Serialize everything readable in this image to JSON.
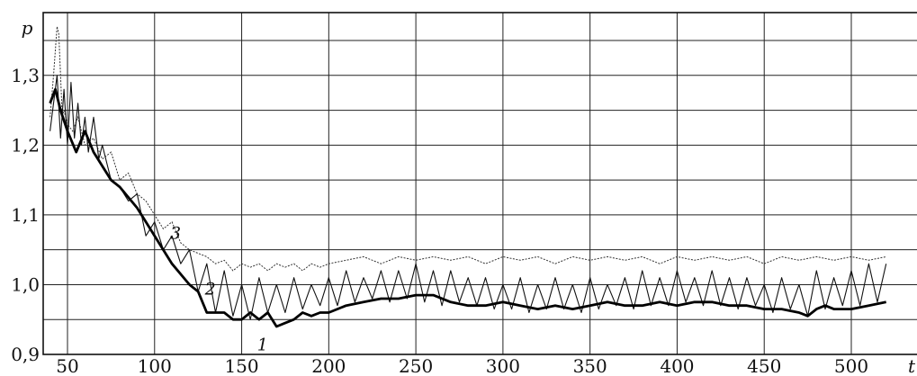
{
  "chart_data": {
    "type": "line",
    "xlabel": "t",
    "ylabel": "p",
    "xlim": [
      40,
      520
    ],
    "ylim": [
      0.9,
      1.39
    ],
    "x_ticks": [
      50,
      100,
      150,
      200,
      250,
      300,
      350,
      400,
      450,
      500
    ],
    "x_tick_labels": [
      "50",
      "100",
      "150",
      "200",
      "250",
      "300",
      "350",
      "400",
      "450",
      "500"
    ],
    "y_ticks": [
      0.9,
      1.0,
      1.1,
      1.2,
      1.3
    ],
    "y_tick_labels": [
      "0,9",
      "1,0",
      "1,1",
      "1,2",
      "1,3"
    ],
    "grid": true,
    "series": [
      {
        "name": "1",
        "style": "thick",
        "x": [
          40,
          43,
          46,
          50,
          55,
          60,
          65,
          70,
          75,
          80,
          90,
          100,
          110,
          120,
          125,
          130,
          135,
          140,
          145,
          150,
          155,
          160,
          165,
          170,
          175,
          180,
          185,
          190,
          195,
          200,
          210,
          220,
          230,
          240,
          250,
          260,
          270,
          280,
          290,
          300,
          310,
          320,
          330,
          340,
          350,
          360,
          370,
          380,
          390,
          400,
          410,
          420,
          430,
          440,
          450,
          460,
          470,
          475,
          480,
          485,
          490,
          500,
          510,
          520
        ],
        "y": [
          1.26,
          1.28,
          1.25,
          1.22,
          1.19,
          1.22,
          1.19,
          1.17,
          1.15,
          1.14,
          1.11,
          1.07,
          1.03,
          1.0,
          0.99,
          0.96,
          0.96,
          0.96,
          0.95,
          0.95,
          0.96,
          0.95,
          0.96,
          0.94,
          0.945,
          0.95,
          0.96,
          0.955,
          0.96,
          0.96,
          0.97,
          0.975,
          0.98,
          0.98,
          0.985,
          0.985,
          0.975,
          0.97,
          0.97,
          0.975,
          0.97,
          0.965,
          0.97,
          0.965,
          0.97,
          0.975,
          0.97,
          0.97,
          0.975,
          0.97,
          0.975,
          0.975,
          0.97,
          0.97,
          0.965,
          0.965,
          0.96,
          0.955,
          0.965,
          0.97,
          0.965,
          0.965,
          0.97,
          0.975
        ]
      },
      {
        "name": "2",
        "style": "thin",
        "x": [
          40,
          42,
          44,
          46,
          48,
          50,
          52,
          54,
          56,
          58,
          60,
          62,
          65,
          68,
          70,
          75,
          80,
          85,
          90,
          95,
          100,
          105,
          110,
          115,
          120,
          125,
          130,
          135,
          140,
          145,
          150,
          155,
          160,
          165,
          170,
          175,
          180,
          185,
          190,
          195,
          200,
          205,
          210,
          215,
          220,
          225,
          230,
          235,
          240,
          245,
          250,
          255,
          260,
          265,
          270,
          275,
          280,
          285,
          290,
          295,
          300,
          305,
          310,
          315,
          320,
          325,
          330,
          335,
          340,
          345,
          350,
          355,
          360,
          365,
          370,
          375,
          380,
          385,
          390,
          395,
          400,
          405,
          410,
          415,
          420,
          425,
          430,
          435,
          440,
          445,
          450,
          455,
          460,
          465,
          470,
          475,
          480,
          485,
          490,
          495,
          500,
          505,
          510,
          515,
          520
        ],
        "y": [
          1.22,
          1.26,
          1.3,
          1.21,
          1.28,
          1.2,
          1.29,
          1.21,
          1.26,
          1.2,
          1.24,
          1.19,
          1.24,
          1.18,
          1.2,
          1.15,
          1.14,
          1.12,
          1.13,
          1.07,
          1.09,
          1.05,
          1.07,
          1.03,
          1.05,
          0.99,
          1.03,
          0.96,
          1.02,
          0.955,
          1.0,
          0.95,
          1.01,
          0.96,
          1.0,
          0.96,
          1.01,
          0.965,
          1.0,
          0.97,
          1.01,
          0.97,
          1.02,
          0.975,
          1.01,
          0.98,
          1.02,
          0.975,
          1.02,
          0.98,
          1.03,
          0.975,
          1.02,
          0.97,
          1.02,
          0.975,
          1.01,
          0.97,
          1.01,
          0.965,
          1.0,
          0.965,
          1.01,
          0.96,
          1.0,
          0.965,
          1.01,
          0.965,
          1.0,
          0.96,
          1.01,
          0.965,
          1.0,
          0.97,
          1.01,
          0.965,
          1.02,
          0.97,
          1.01,
          0.97,
          1.02,
          0.975,
          1.01,
          0.97,
          1.02,
          0.97,
          1.01,
          0.965,
          1.01,
          0.97,
          1.0,
          0.96,
          1.01,
          0.965,
          1.0,
          0.955,
          1.02,
          0.965,
          1.01,
          0.97,
          1.02,
          0.97,
          1.03,
          0.975,
          1.03
        ]
      },
      {
        "name": "3",
        "style": "dotted",
        "x": [
          40,
          42,
          44,
          45,
          46,
          47,
          48,
          50,
          53,
          56,
          60,
          65,
          70,
          75,
          80,
          85,
          90,
          95,
          100,
          105,
          110,
          115,
          120,
          125,
          130,
          135,
          140,
          145,
          150,
          155,
          160,
          165,
          170,
          175,
          180,
          185,
          190,
          195,
          200,
          210,
          220,
          230,
          240,
          250,
          260,
          270,
          280,
          290,
          300,
          310,
          320,
          330,
          340,
          350,
          360,
          370,
          380,
          390,
          400,
          410,
          420,
          430,
          440,
          450,
          460,
          470,
          480,
          490,
          500,
          510,
          520
        ],
        "y": [
          1.24,
          1.3,
          1.37,
          1.36,
          1.3,
          1.24,
          1.25,
          1.23,
          1.22,
          1.24,
          1.2,
          1.21,
          1.18,
          1.19,
          1.15,
          1.16,
          1.13,
          1.12,
          1.1,
          1.08,
          1.09,
          1.06,
          1.05,
          1.045,
          1.04,
          1.03,
          1.035,
          1.02,
          1.03,
          1.025,
          1.03,
          1.02,
          1.03,
          1.025,
          1.03,
          1.02,
          1.03,
          1.025,
          1.03,
          1.035,
          1.04,
          1.03,
          1.04,
          1.035,
          1.04,
          1.035,
          1.04,
          1.03,
          1.04,
          1.035,
          1.04,
          1.03,
          1.04,
          1.035,
          1.04,
          1.035,
          1.04,
          1.03,
          1.04,
          1.035,
          1.04,
          1.035,
          1.04,
          1.03,
          1.04,
          1.035,
          1.04,
          1.035,
          1.04,
          1.035,
          1.04
        ]
      }
    ],
    "annotations": [
      {
        "text": "1",
        "x": 162,
        "y": 0.915
      },
      {
        "text": "2",
        "x": 132,
        "y": 0.995
      },
      {
        "text": "3",
        "x": 112,
        "y": 1.075
      }
    ]
  }
}
